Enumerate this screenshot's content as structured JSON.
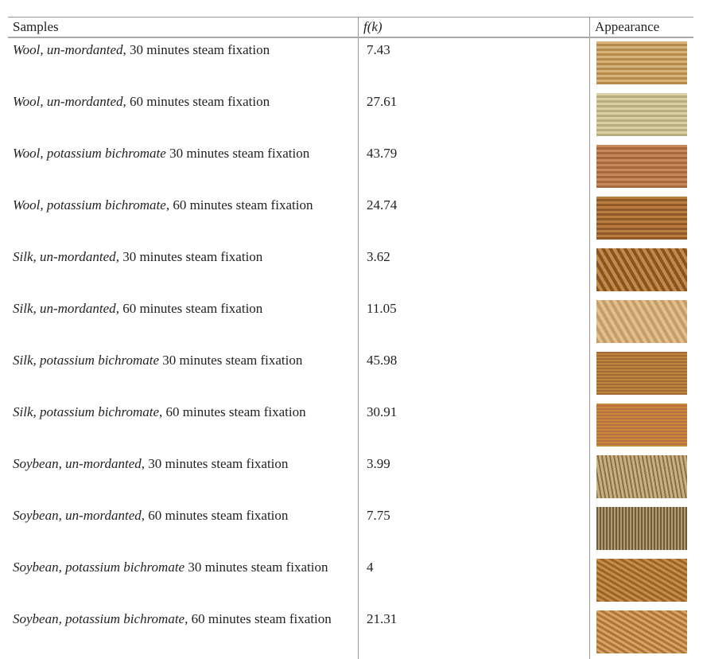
{
  "table": {
    "header": [
      "Samples",
      "f(k)",
      "Appearance"
    ],
    "rows": [
      {
        "italic": "Wool, un-mordanted",
        "text": ", 30 minutes steam fixation",
        "fk": 7.43
      },
      {
        "italic": "Wool, un-mordanted",
        "text": ", 60 minutes steam fixation",
        "fk": 27.61
      },
      {
        "italic": "Wool, potassium bichromate",
        "text": " 30 minutes steam fixation",
        "fk": 43.79
      },
      {
        "italic": "Wool, potassium bichromate",
        "text": ", 60 minutes steam fixation",
        "fk": 24.74
      },
      {
        "italic": "Silk, un-mordanted",
        "text": ", 30 minutes steam fixation",
        "fk": 3.62
      },
      {
        "italic": "Silk, un-mordanted",
        "text": ", 60 minutes steam fixation",
        "fk": 11.05
      },
      {
        "italic": "Silk, potassium bichromate",
        "text": " 30 minutes steam fixation",
        "fk": 45.98
      },
      {
        "italic": "Silk, potassium bichromate",
        "text": ", 60 minutes steam fixation",
        "fk": 30.91
      },
      {
        "italic": "Soybean, un-mordanted",
        "text": ", 30 minutes steam fixation",
        "fk": 3.99
      },
      {
        "italic": "Soybean, un-mordanted",
        "text": ", 60 minutes steam fixation",
        "fk": 7.75
      },
      {
        "italic": "Soybean, potassium bichromate",
        "text": " 30 minutes steam fixation",
        "fk": 4
      },
      {
        "italic": "Soybean, potassium bichromate",
        "text": ", 60 minutes steam fixation",
        "fk": 21.31
      }
    ]
  }
}
